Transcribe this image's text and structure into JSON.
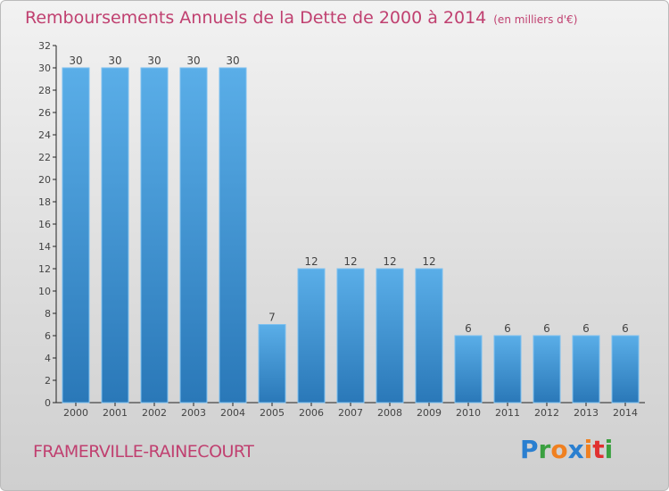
{
  "chart_data": {
    "type": "bar",
    "title": "Remboursements Annuels de la Dette de 2000 à 2014",
    "subtitle": "(en milliers d'€)",
    "categories": [
      "2000",
      "2001",
      "2002",
      "2003",
      "2004",
      "2005",
      "2006",
      "2007",
      "2008",
      "2009",
      "2010",
      "2011",
      "2012",
      "2013",
      "2014"
    ],
    "values": [
      30,
      30,
      30,
      30,
      30,
      7,
      12,
      12,
      12,
      12,
      6,
      6,
      6,
      6,
      6
    ],
    "ylim": [
      0,
      32
    ],
    "yticks": [
      0,
      2,
      4,
      6,
      8,
      10,
      12,
      14,
      16,
      18,
      20,
      22,
      24,
      26,
      28,
      30,
      32
    ],
    "xlabel": "",
    "ylabel": "",
    "bar_color": "#4a9ee0"
  },
  "commune": "FRAMERVILLE-RAINECOURT",
  "logo": {
    "text": "Proxiti",
    "letters": [
      [
        "P",
        "#2a7fd0"
      ],
      [
        "r",
        "#3aa040"
      ],
      [
        "o",
        "#f08020"
      ],
      [
        "x",
        "#2a7fd0"
      ],
      [
        "i",
        "#f08020"
      ],
      [
        "t",
        "#e03030"
      ],
      [
        "i",
        "#3aa040"
      ]
    ]
  }
}
